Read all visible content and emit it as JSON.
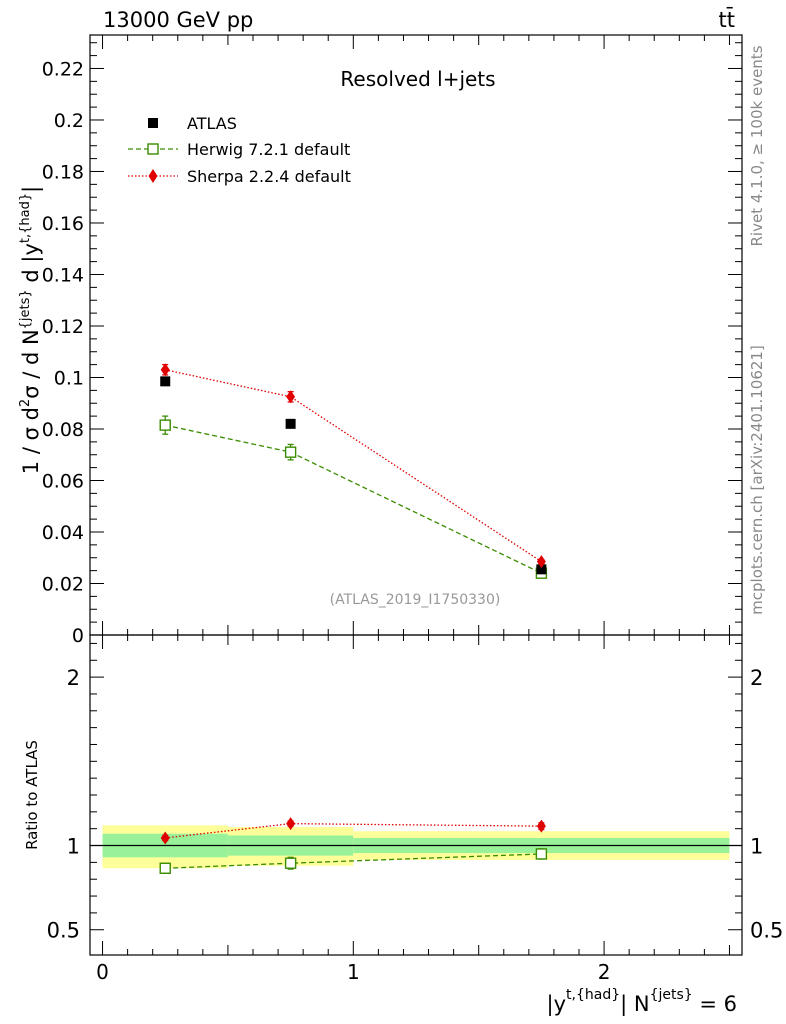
{
  "header": {
    "energy_label": "13000 GeV pp",
    "process_label": "tt̄"
  },
  "side_text": {
    "rivet": "Rivet 4.1.0, ≥ 100k events",
    "mcplots": "mcplots.cern.ch [arXiv:2401.10621]"
  },
  "chart_data": {
    "type": "scatter",
    "title": "Resolved l+jets",
    "watermark": "(ATLAS_2019_I1750330)",
    "ylabel": "1 / σ d²σ / d N^{jets} d |y^{t,{had}}|",
    "xlabel": "|y^{t,{had}}| N^{jets} = 6",
    "ratio_ylabel": "Ratio to ATLAS",
    "xlim": [
      -0.05,
      2.55
    ],
    "ylim": [
      0,
      0.233
    ],
    "ratio_ylim": [
      0.35,
      2.25
    ],
    "x_ticks": [
      0,
      1,
      2
    ],
    "y_ticks": [
      0,
      0.02,
      0.04,
      0.06,
      0.08,
      0.1,
      0.12,
      0.14,
      0.16,
      0.18,
      0.2,
      0.22
    ],
    "y_tick_labels": [
      "0",
      "0.02",
      "0.04",
      "0.06",
      "0.08",
      "0.1",
      "0.12",
      "0.14",
      "0.16",
      "0.18",
      "0.2",
      "0.22"
    ],
    "ratio_ticks": [
      0.5,
      1,
      2
    ],
    "ratio_tick_labels": [
      "0.5",
      "1",
      "2"
    ],
    "bins": [
      [
        0,
        0.5
      ],
      [
        0.5,
        1.0
      ],
      [
        1.0,
        2.5
      ]
    ],
    "x": [
      0.25,
      0.75,
      1.75
    ],
    "series": [
      {
        "name": "ATLAS",
        "values": [
          0.0985,
          0.082,
          0.0255
        ],
        "errors": [
          0.0,
          0.0,
          0.0
        ],
        "marker": "square-filled",
        "color": "#000000",
        "line": "none"
      },
      {
        "name": "Herwig 7.2.1 default",
        "values": [
          0.0815,
          0.071,
          0.024
        ],
        "errors": [
          0.0035,
          0.003,
          0.001
        ],
        "marker": "square-open",
        "color": "#3a8c00",
        "line": "dashed"
      },
      {
        "name": "Sherpa 2.2.4 default",
        "values": [
          0.103,
          0.0925,
          0.0285
        ],
        "errors": [
          0.002,
          0.002,
          0.0008
        ],
        "marker": "diamond",
        "color": "#e00000",
        "line": "dotted"
      }
    ],
    "ratio": {
      "herwig": [
        0.865,
        0.895,
        0.95
      ],
      "herwig_err": [
        0.03,
        0.035,
        0.03
      ],
      "sherpa": [
        1.045,
        1.13,
        1.115
      ],
      "sherpa_err": [
        0.015,
        0.015,
        0.02
      ],
      "band_inner": [
        [
          0.93,
          1.07
        ],
        [
          0.94,
          1.06
        ],
        [
          0.955,
          1.045
        ]
      ],
      "band_outer": [
        [
          0.865,
          1.12
        ],
        [
          0.88,
          1.11
        ],
        [
          0.915,
          1.085
        ]
      ],
      "band_inner_color": "#99f299",
      "band_outer_color": "#ffff99"
    }
  }
}
